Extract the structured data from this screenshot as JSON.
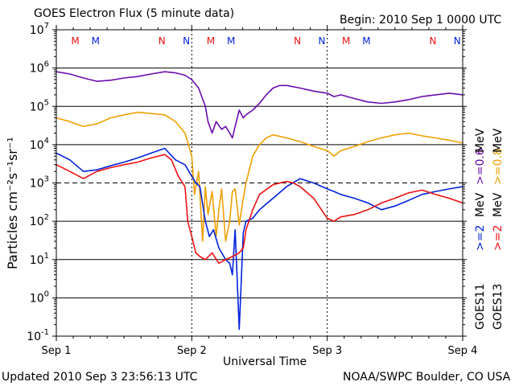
{
  "header": {
    "title": "GOES Electron Flux (5 minute data)",
    "begin": "Begin: 2010 Sep 1 0000 UTC"
  },
  "footer": {
    "updated": "Updated 2010 Sep  3 23:56:13 UTC",
    "source": "NOAA/SWPC Boulder, CO USA"
  },
  "colors": {
    "purple": "#6a0dad",
    "orange": "#f0a000",
    "blue": "#0022dd",
    "red": "#ee1111",
    "grid": "#000000"
  },
  "chart_data": {
    "type": "line",
    "title": "GOES Electron Flux (5 minute data)",
    "xlabel": "Universal Time",
    "ylabel": "Particles cm⁻²s⁻¹sr⁻¹",
    "yscale": "log",
    "ylim": [
      0.1,
      10000000
    ],
    "xlim": [
      0,
      3
    ],
    "x_ticks": [
      {
        "x": 0,
        "label": "Sep 1"
      },
      {
        "x": 1,
        "label": "Sep 2"
      },
      {
        "x": 2,
        "label": "Sep 3"
      },
      {
        "x": 3,
        "label": "Sep 4"
      }
    ],
    "y_ticks": [
      {
        "v": 0.1,
        "m": "10",
        "e": "-1"
      },
      {
        "v": 1,
        "m": "10",
        "e": "0"
      },
      {
        "v": 10,
        "m": "10",
        "e": "1"
      },
      {
        "v": 100,
        "m": "10",
        "e": "2"
      },
      {
        "v": 1000,
        "m": "10",
        "e": "3"
      },
      {
        "v": 10000,
        "m": "10",
        "e": "4"
      },
      {
        "v": 100000,
        "m": "10",
        "e": "5"
      },
      {
        "v": 1000000,
        "m": "10",
        "e": "6"
      },
      {
        "v": 10000000,
        "m": "10",
        "e": "7"
      }
    ],
    "threshold": 1000,
    "markers": [
      {
        "x": 0.14,
        "label": "M",
        "color": "#ee1111"
      },
      {
        "x": 0.29,
        "label": "M",
        "color": "#0022dd"
      },
      {
        "x": 0.78,
        "label": "N",
        "color": "#ee1111"
      },
      {
        "x": 0.96,
        "label": "N",
        "color": "#0022dd"
      },
      {
        "x": 1.14,
        "label": "M",
        "color": "#ee1111"
      },
      {
        "x": 1.29,
        "label": "M",
        "color": "#0022dd"
      },
      {
        "x": 1.78,
        "label": "N",
        "color": "#ee1111"
      },
      {
        "x": 1.96,
        "label": "N",
        "color": "#0022dd"
      },
      {
        "x": 2.14,
        "label": "M",
        "color": "#ee1111"
      },
      {
        "x": 2.29,
        "label": "M",
        "color": "#0022dd"
      },
      {
        "x": 2.78,
        "label": "N",
        "color": "#ee1111"
      },
      {
        "x": 2.96,
        "label": "N",
        "color": "#0022dd"
      }
    ],
    "legend": {
      "goes13": "GOES13",
      "goes11": "GOES11",
      "red": ">=2",
      "blue": ">=2",
      "orange": ">=0.8",
      "purple": ">=0.6",
      "unit": "MeV"
    },
    "series": [
      {
        "name": "GOES13 >=0.6 MeV",
        "color": "#6a0dad",
        "x": [
          0.0,
          0.1,
          0.2,
          0.3,
          0.4,
          0.5,
          0.6,
          0.7,
          0.8,
          0.88,
          0.95,
          1.0,
          1.05,
          1.1,
          1.12,
          1.15,
          1.18,
          1.22,
          1.25,
          1.28,
          1.3,
          1.32,
          1.35,
          1.38,
          1.4,
          1.45,
          1.5,
          1.55,
          1.6,
          1.65,
          1.7,
          1.8,
          1.9,
          2.0,
          2.05,
          2.1,
          2.2,
          2.3,
          2.4,
          2.5,
          2.6,
          2.7,
          2.8,
          2.9,
          3.0
        ],
        "y": [
          800000,
          700000,
          550000,
          450000,
          480000,
          550000,
          600000,
          700000,
          800000,
          750000,
          650000,
          500000,
          300000,
          100000,
          40000,
          20000,
          40000,
          25000,
          30000,
          20000,
          15000,
          30000,
          80000,
          50000,
          60000,
          80000,
          120000,
          200000,
          300000,
          350000,
          350000,
          300000,
          250000,
          220000,
          180000,
          200000,
          160000,
          130000,
          120000,
          130000,
          150000,
          180000,
          200000,
          220000,
          200000
        ]
      },
      {
        "name": "GOES13 >=0.8 MeV",
        "color": "#f0a000",
        "x": [
          0.0,
          0.1,
          0.2,
          0.3,
          0.4,
          0.5,
          0.6,
          0.7,
          0.8,
          0.88,
          0.95,
          1.0,
          1.02,
          1.05,
          1.08,
          1.1,
          1.12,
          1.15,
          1.18,
          1.2,
          1.22,
          1.25,
          1.28,
          1.3,
          1.32,
          1.35,
          1.38,
          1.4,
          1.45,
          1.5,
          1.55,
          1.6,
          1.7,
          1.8,
          1.9,
          2.0,
          2.05,
          2.1,
          2.2,
          2.3,
          2.4,
          2.5,
          2.6,
          2.7,
          2.8,
          2.9,
          3.0
        ],
        "y": [
          50000,
          40000,
          30000,
          35000,
          50000,
          60000,
          70000,
          65000,
          60000,
          40000,
          20000,
          5000,
          500,
          2000,
          30,
          800,
          150,
          600,
          40,
          200,
          700,
          30,
          100,
          600,
          700,
          80,
          400,
          1000,
          5000,
          10000,
          15000,
          18000,
          15000,
          12000,
          9000,
          7000,
          5000,
          7000,
          9000,
          12000,
          15000,
          18000,
          20000,
          17000,
          15000,
          13000,
          11000
        ]
      },
      {
        "name": "GOES11 >=2 MeV",
        "color": "#0022dd",
        "x": [
          0.0,
          0.1,
          0.2,
          0.3,
          0.4,
          0.5,
          0.6,
          0.7,
          0.8,
          0.88,
          0.95,
          1.0,
          1.03,
          1.06,
          1.1,
          1.13,
          1.16,
          1.2,
          1.25,
          1.28,
          1.3,
          1.32,
          1.35,
          1.38,
          1.4,
          1.45,
          1.5,
          1.6,
          1.7,
          1.8,
          1.9,
          2.0,
          2.05,
          2.1,
          2.2,
          2.3,
          2.4,
          2.5,
          2.6,
          2.7,
          2.8,
          2.9,
          3.0
        ],
        "y": [
          6000,
          4000,
          2000,
          2200,
          2800,
          3500,
          4500,
          6000,
          8000,
          4000,
          3000,
          1500,
          1000,
          800,
          100,
          40,
          60,
          20,
          10,
          8,
          4,
          60,
          0.15,
          50,
          100,
          120,
          200,
          400,
          800,
          1300,
          1000,
          700,
          600,
          500,
          400,
          300,
          200,
          250,
          350,
          500,
          600,
          700,
          800
        ]
      },
      {
        "name": "GOES13 >=2 MeV",
        "color": "#ee1111",
        "x": [
          0.0,
          0.1,
          0.2,
          0.3,
          0.4,
          0.5,
          0.6,
          0.7,
          0.8,
          0.85,
          0.9,
          0.95,
          0.97,
          1.0,
          1.03,
          1.06,
          1.1,
          1.15,
          1.2,
          1.25,
          1.3,
          1.35,
          1.38,
          1.4,
          1.45,
          1.5,
          1.6,
          1.7,
          1.75,
          1.8,
          1.9,
          2.0,
          2.05,
          2.1,
          2.2,
          2.3,
          2.4,
          2.5,
          2.6,
          2.7,
          2.8,
          2.9,
          3.0
        ],
        "y": [
          3000,
          2000,
          1300,
          2000,
          2500,
          3000,
          3500,
          4500,
          5500,
          4000,
          1500,
          800,
          100,
          40,
          15,
          12,
          10,
          15,
          8,
          10,
          12,
          15,
          20,
          60,
          200,
          500,
          900,
          1100,
          1000,
          800,
          400,
          120,
          100,
          130,
          150,
          200,
          300,
          400,
          550,
          650,
          500,
          400,
          300
        ]
      }
    ]
  }
}
